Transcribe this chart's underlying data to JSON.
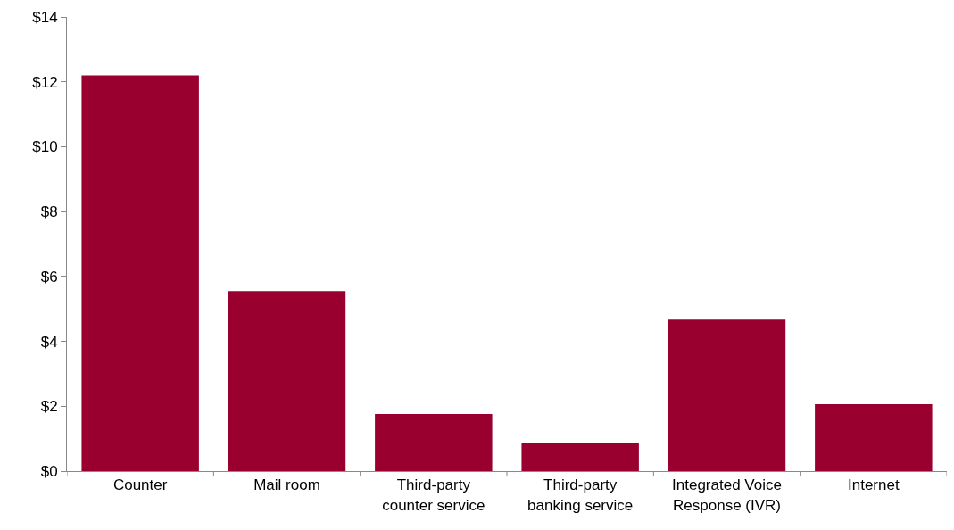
{
  "chart_data": {
    "type": "bar",
    "categories": [
      "Counter",
      "Mail room",
      "Third-party counter service",
      "Third-party banking service",
      "Integrated Voice Response (IVR)",
      "Internet"
    ],
    "values": [
      12.2,
      5.55,
      1.76,
      0.88,
      4.67,
      2.06
    ],
    "color": "#990030",
    "ylim": [
      0,
      14
    ],
    "yticks": [
      {
        "value": 0,
        "label": "$0"
      },
      {
        "value": 2,
        "label": "$2"
      },
      {
        "value": 4,
        "label": "$4"
      },
      {
        "value": 6,
        "label": "$6"
      },
      {
        "value": 8,
        "label": "$8"
      },
      {
        "value": 10,
        "label": "$10"
      },
      {
        "value": 12,
        "label": "$12"
      },
      {
        "value": 14,
        "label": "$14"
      }
    ],
    "grid": false
  }
}
